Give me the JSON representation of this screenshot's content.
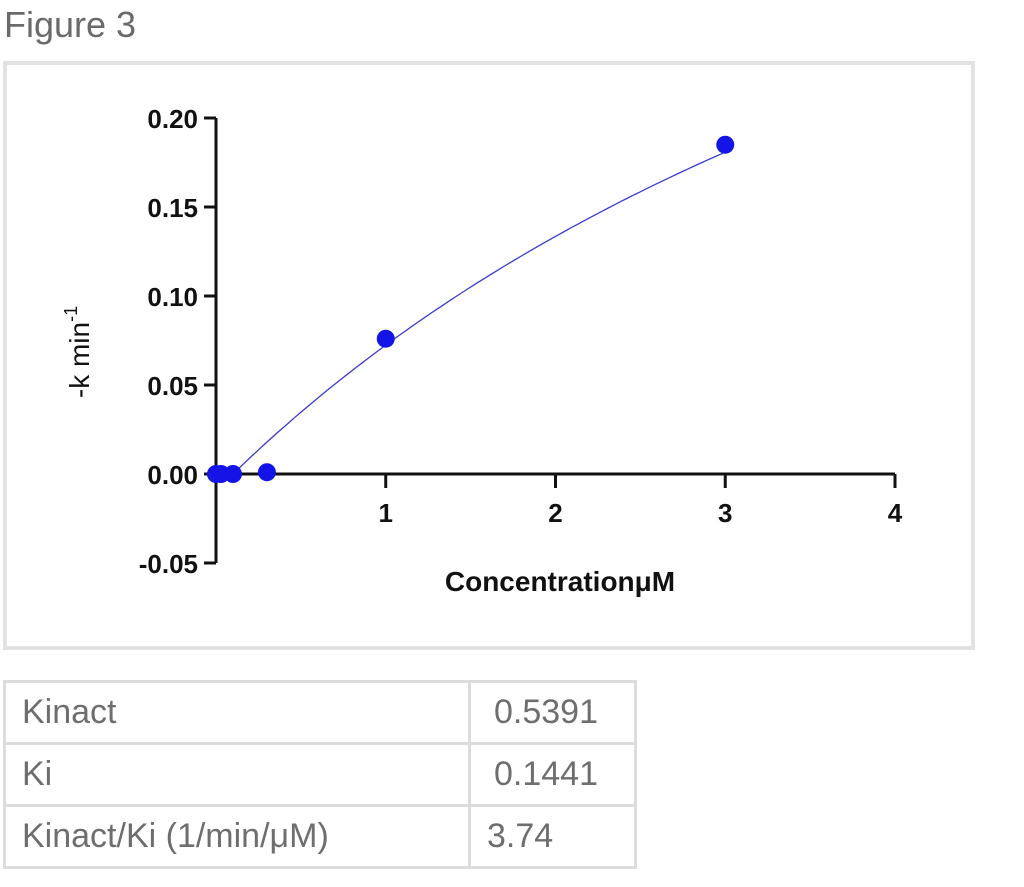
{
  "figure_caption": "Figure 3",
  "chart_data": {
    "type": "scatter",
    "xlabel": "ConcentrationμM",
    "ylabel": "-k min",
    "ylabel_superscript": "-1",
    "xlim": [
      0,
      4
    ],
    "ylim": [
      -0.05,
      0.2
    ],
    "x_ticks": [
      {
        "value": 1,
        "label": "1"
      },
      {
        "value": 2,
        "label": "2"
      },
      {
        "value": 3,
        "label": "3"
      },
      {
        "value": 4,
        "label": "4"
      }
    ],
    "y_ticks": [
      {
        "value": 0.2,
        "label": "0.20"
      },
      {
        "value": 0.15,
        "label": "0.15"
      },
      {
        "value": 0.1,
        "label": "0.10"
      },
      {
        "value": 0.05,
        "label": "0.05"
      },
      {
        "value": 0.0,
        "label": "0.00"
      },
      {
        "value": -0.05,
        "label": "-0.05"
      }
    ],
    "points": [
      {
        "x": 0.0,
        "y": 0.0
      },
      {
        "x": 0.03,
        "y": 0.0
      },
      {
        "x": 0.1,
        "y": 0.0
      },
      {
        "x": 0.3,
        "y": 0.001
      },
      {
        "x": 1.0,
        "y": 0.076
      },
      {
        "x": 3.0,
        "y": 0.185
      }
    ],
    "fit_curve": {
      "kinact": 0.5391,
      "ki": 0.1441,
      "color": "#3a3ad0"
    },
    "marker_color": "#1414e6",
    "grid": false
  },
  "results_table": [
    {
      "label": "Kinact",
      "value": "0.5391"
    },
    {
      "label": "Ki",
      "value": "0.1441"
    },
    {
      "label": "Kinact/Ki (1/min/μM)",
      "value": "3.74"
    }
  ]
}
